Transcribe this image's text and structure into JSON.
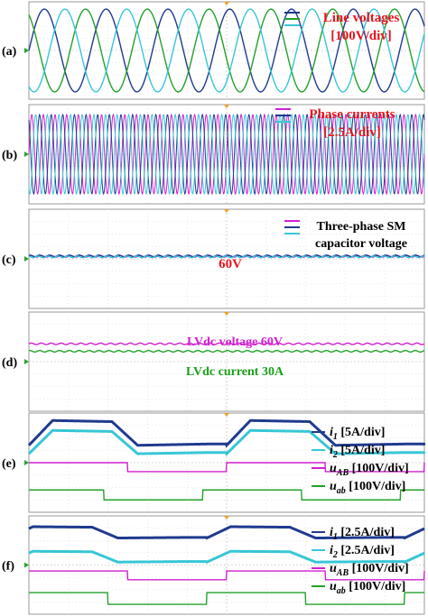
{
  "chart_data": [
    {
      "type": "line",
      "panel": "(a)",
      "legend": [
        "Line voltages",
        "[100V/div]"
      ],
      "series": [
        {
          "color": "#1f3a8f",
          "kind": "sine",
          "cycles": 6.4,
          "amp": 0.85,
          "phase": 0
        },
        {
          "color": "#23a12a",
          "kind": "sine",
          "cycles": 6.4,
          "amp": 0.85,
          "phase": 2.094
        },
        {
          "color": "#38c6d6",
          "kind": "sine",
          "cycles": 6.4,
          "amp": 0.85,
          "phase": 4.189
        }
      ]
    },
    {
      "type": "line",
      "panel": "(b)",
      "legend": [
        "Phase currents",
        "[2.5A/div]"
      ],
      "series": [
        {
          "color": "#d01fd0",
          "kind": "sine",
          "cycles": 34,
          "amp": 0.8,
          "phase": 0
        },
        {
          "color": "#1f3a8f",
          "kind": "sine",
          "cycles": 34,
          "amp": 0.8,
          "phase": 2.094
        },
        {
          "color": "#38c6d6",
          "kind": "sine",
          "cycles": 34,
          "amp": 0.8,
          "phase": 4.189
        }
      ]
    },
    {
      "type": "line",
      "panel": "(c)",
      "legend": [
        "Three-phase SM",
        "capacitor voltage"
      ],
      "annotation": "60V",
      "series": [
        {
          "color": "#d01fd0",
          "kind": "flat",
          "level": 0.05
        },
        {
          "color": "#1f3a8f",
          "kind": "flat",
          "level": 0.06
        },
        {
          "color": "#38c6d6",
          "kind": "flat",
          "level": 0.04
        }
      ]
    },
    {
      "type": "line",
      "panel": "(d)",
      "legend": [
        "LVdc voltage 60V",
        "LVdc current 30A"
      ],
      "series": [
        {
          "name": "LVdc voltage 60V",
          "color": "#d01fd0",
          "kind": "flat",
          "level": 0.36
        },
        {
          "name": "LVdc current 30A",
          "color": "#23a12a",
          "kind": "flat",
          "level": 0.21
        }
      ]
    },
    {
      "type": "line",
      "panel": "(e)",
      "legend": [
        {
          "sym": "i",
          "sub": "1",
          "text": " [5A/div]",
          "color": "#1f3a8f"
        },
        {
          "sym": "i",
          "sub": "2",
          "text": " [5A/div]",
          "color": "#38c6d6"
        },
        {
          "sym": "u",
          "sub": "AB",
          "text": " [100V/div]",
          "color": "#d01fd0"
        },
        {
          "sym": "u",
          "sub": "ab",
          "text": " [100V/div]",
          "color": "#23a12a"
        }
      ],
      "series": [
        {
          "color": "#1f3a8f",
          "kind": "trap",
          "hi": 0.85,
          "lo": 0.35
        },
        {
          "color": "#38c6d6",
          "kind": "trap",
          "hi": 0.65,
          "lo": 0.18
        },
        {
          "color": "#d01fd0",
          "kind": "square",
          "hi": 0.0,
          "lo": -0.18,
          "offset": 0.0
        },
        {
          "color": "#23a12a",
          "kind": "square",
          "hi": -0.55,
          "lo": -0.75,
          "offset": 0.06
        }
      ]
    },
    {
      "type": "line",
      "panel": "(f)",
      "legend": [
        {
          "sym": "i",
          "sub": "1",
          "text": " [2.5A/div]",
          "color": "#1f3a8f"
        },
        {
          "sym": "i",
          "sub": "2",
          "text": " [2.5A/div]",
          "color": "#38c6d6"
        },
        {
          "sym": "u",
          "sub": "AB",
          "text": " [100V/div]",
          "color": "#d01fd0"
        },
        {
          "sym": "u",
          "sub": "ab",
          "text": " [100V/div]",
          "color": "#23a12a"
        }
      ],
      "series": [
        {
          "color": "#1f3a8f",
          "kind": "trap2",
          "hi": 0.78,
          "lo": 0.55
        },
        {
          "color": "#38c6d6",
          "kind": "trap2",
          "hi": 0.28,
          "lo": 0.06
        },
        {
          "color": "#d01fd0",
          "kind": "square",
          "hi": -0.12,
          "lo": -0.3,
          "offset": 0.0
        },
        {
          "color": "#23a12a",
          "kind": "square",
          "hi": -0.56,
          "lo": -0.8,
          "offset": 0.05
        }
      ]
    }
  ]
}
